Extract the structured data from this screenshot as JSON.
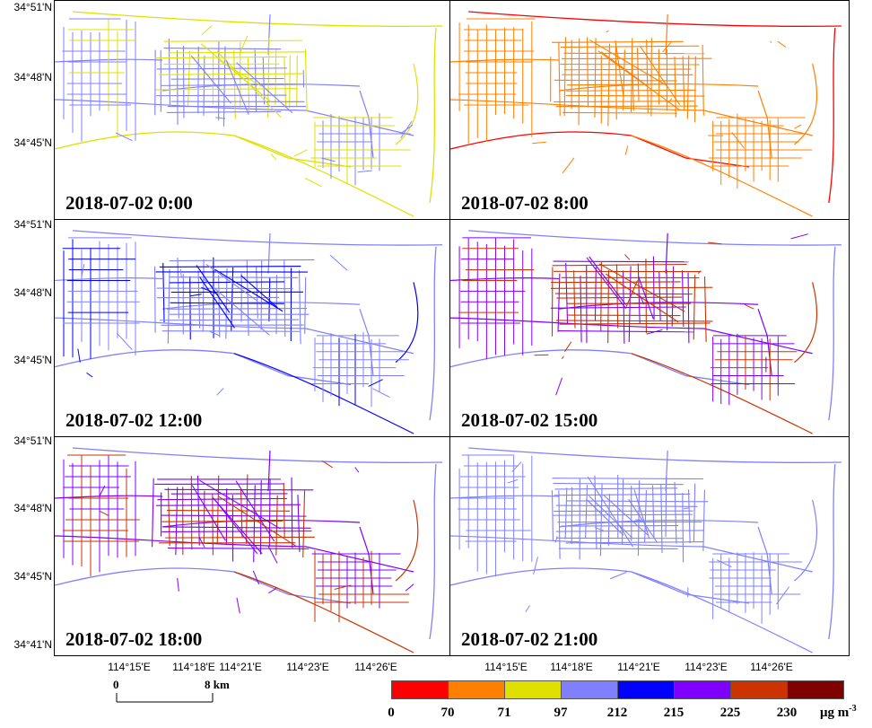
{
  "y_labels": [
    "34°51'N",
    "34°48'N",
    "34°45'N",
    "34°51'N",
    "34°48'N",
    "34°45'N",
    "34°51'N",
    "34°48'N",
    "34°45'N",
    "34°41'N"
  ],
  "x_labels": [
    "114°15'E",
    "114°18'E",
    "114°21'E",
    "114°23'E",
    "114°26'E"
  ],
  "panels": [
    {
      "title": "2018-07-02 0:00",
      "primary": "#8080ff",
      "secondary": "#e0e000",
      "main": "#e0e000"
    },
    {
      "title": "2018-07-02 8:00",
      "primary": "#ff8000",
      "secondary": "#ff8000",
      "main": "#ff0000"
    },
    {
      "title": "2018-07-02 12:00",
      "primary": "#8080ff",
      "secondary": "#0000ff",
      "main": "#8080ff"
    },
    {
      "title": "2018-07-02 15:00",
      "primary": "#8000ff",
      "secondary": "#cc3300",
      "main": "#8080ff"
    },
    {
      "title": "2018-07-02 18:00",
      "primary": "#8000ff",
      "secondary": "#cc3300",
      "main": "#8080ff"
    },
    {
      "title": "2018-07-02 21:00",
      "primary": "#8080ff",
      "secondary": "#8080ff",
      "main": "#8080ff"
    }
  ],
  "scale_bar": {
    "start": "0",
    "end": "8 km"
  },
  "legend": {
    "colors": [
      "#ff0000",
      "#ff8000",
      "#e0e000",
      "#8080ff",
      "#0000ff",
      "#8000ff",
      "#cc3300",
      "#800000"
    ],
    "labels": [
      "0",
      "70",
      "71",
      "97",
      "212",
      "215",
      "225",
      "230"
    ],
    "unit": "μg m",
    "unit_sup": "-3"
  }
}
